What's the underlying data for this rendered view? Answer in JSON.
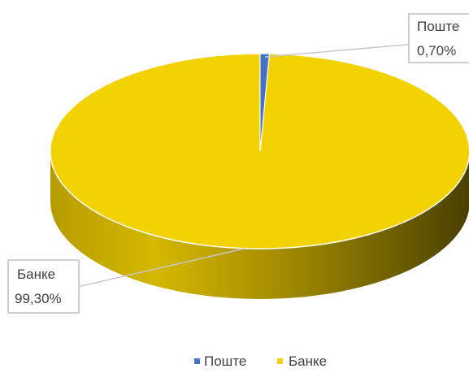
{
  "chart_data": {
    "type": "pie",
    "title": "",
    "categories": [
      "Поште",
      "Банке"
    ],
    "values": [
      0.7,
      99.3
    ],
    "value_unit": "%",
    "data_labels": [
      {
        "category": "Поште",
        "value_text": "0,70%"
      },
      {
        "category": "Банке",
        "value_text": "99,30%"
      }
    ],
    "colors": {
      "Поште": "#4472C4",
      "Банке": "#F2D200"
    },
    "style": "3d-exploded-pie",
    "legend_position": "bottom"
  },
  "legend": {
    "items": [
      {
        "label": "Поште",
        "color": "#4472C4"
      },
      {
        "label": "Банке",
        "color": "#F2D200"
      }
    ]
  },
  "callouts": {
    "poshte": {
      "name": "Поште",
      "value": "0,70%"
    },
    "banke": {
      "name": "Банке",
      "value": "99,30%"
    }
  }
}
